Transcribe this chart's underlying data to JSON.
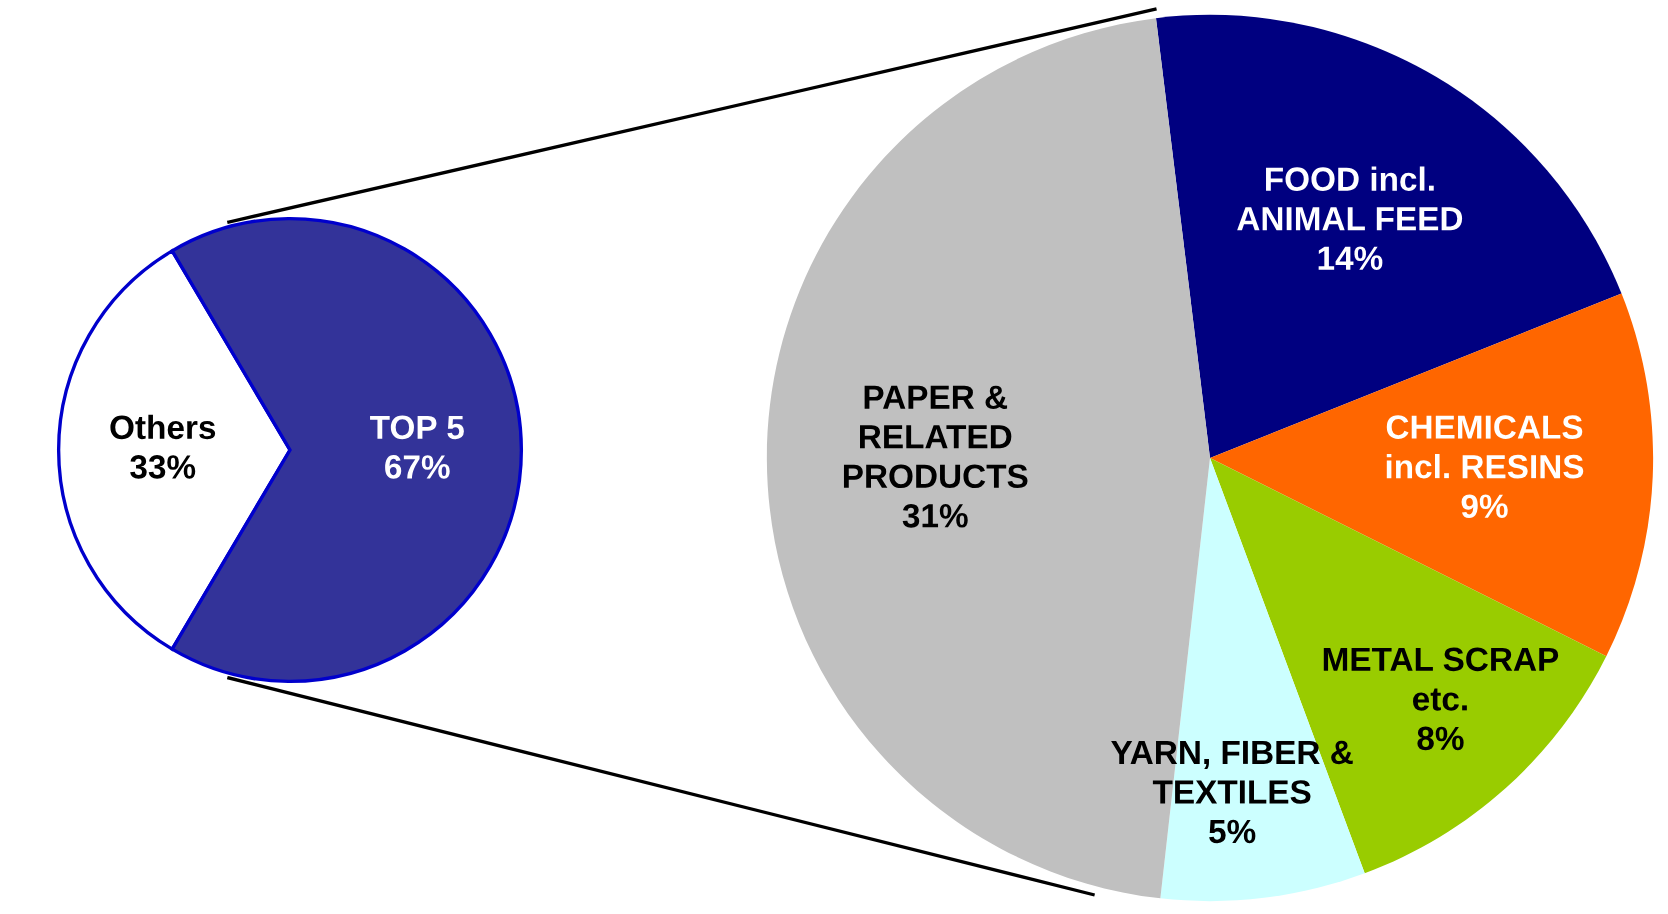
{
  "chart_data": [
    {
      "type": "pie",
      "categories": [
        "Others",
        "TOP 5"
      ],
      "values": [
        33,
        67
      ],
      "colors": [
        "#ffffff",
        "#333399"
      ],
      "value_labels": [
        "33%",
        "67%"
      ]
    },
    {
      "type": "pie",
      "categories": [
        "FOOD incl.\nANIMAL FEED",
        "CHEMICALS\nincl. RESINS",
        "METAL SCRAP\netc.",
        "YARN, FIBER &\nTEXTILES",
        "PAPER &\nRELATED\nPRODUCTS"
      ],
      "values": [
        14,
        9,
        8,
        5,
        31
      ],
      "colors": [
        "#000080",
        "#ff6600",
        "#99cc00",
        "#ccffff",
        "#c0c0c0"
      ],
      "value_labels": [
        "14%",
        "9%",
        "8%",
        "5%",
        "31%"
      ]
    }
  ]
}
